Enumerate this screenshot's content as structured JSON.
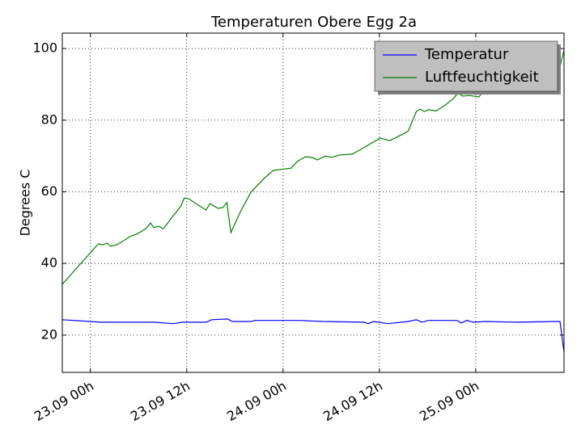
{
  "chart_data": {
    "type": "line",
    "title": "Temperaturen Obere Egg 2a",
    "y_label": "Degrees C",
    "xlim": [
      -3.5,
      59.0
    ],
    "xticks": [
      {
        "value": 0,
        "label": "23.09 00h"
      },
      {
        "value": 12,
        "label": "23.09 12h"
      },
      {
        "value": 24,
        "label": "24.09 00h"
      },
      {
        "value": 36,
        "label": "24.09 12h"
      },
      {
        "value": 48,
        "label": "25.09 00h"
      }
    ],
    "ylim": [
      9.6,
      104.3
    ],
    "yticks": [
      20,
      40,
      60,
      80,
      100
    ],
    "grid": true,
    "legend": "upper right",
    "series": [
      {
        "name": "Temperatur",
        "color": "#0000ff",
        "x": [
          -3.5,
          0,
          1.3,
          3.8,
          7.9,
          10.4,
          11.4,
          14.4,
          15.1,
          17.1,
          17.7,
          20.0,
          20.5,
          26.0,
          29.0,
          34.1,
          34.6,
          35.3,
          37.1,
          39.6,
          40.6,
          41.3,
          42.1,
          45.7,
          46.2,
          46.9,
          47.7,
          49.2,
          53.2,
          57.8,
          58.5,
          59.0
        ],
        "values": [
          24.3,
          23.8,
          23.6,
          23.6,
          23.6,
          23.2,
          23.6,
          23.6,
          24.3,
          24.5,
          23.8,
          23.8,
          24.1,
          24.1,
          23.8,
          23.6,
          23.2,
          23.8,
          23.2,
          23.8,
          24.3,
          23.6,
          24.1,
          24.1,
          23.4,
          24.1,
          23.6,
          23.8,
          23.6,
          23.8,
          23.8,
          15.3
        ]
      },
      {
        "name": "Luftfeuchtigkeit",
        "color": "#008000",
        "x": [
          -3.5,
          0,
          1.0,
          1.5,
          2.1,
          2.5,
          3.3,
          4.3,
          5.1,
          5.8,
          6.9,
          7.5,
          7.9,
          8.5,
          9.1,
          10.1,
          11.3,
          11.7,
          12.2,
          14.4,
          14.9,
          15.9,
          16.5,
          17.0,
          17.5,
          18.7,
          20.0,
          21.7,
          22.8,
          25.0,
          25.8,
          26.8,
          27.6,
          28.3,
          29.3,
          30.0,
          31.1,
          32.6,
          33.5,
          36.1,
          37.3,
          39.1,
          39.6,
          40.1,
          40.6,
          41.1,
          41.6,
          42.1,
          43.1,
          44.2,
          45.2,
          45.8,
          46.4,
          47.2,
          48.4,
          49.0,
          50.2,
          51.7,
          53.2,
          54.7,
          57.3,
          58.3,
          59.0
        ],
        "values": [
          34.2,
          43.0,
          45.5,
          45.2,
          45.7,
          44.8,
          45.2,
          46.6,
          47.7,
          48.2,
          49.7,
          51.3,
          50.0,
          50.4,
          49.7,
          52.7,
          56.1,
          58.3,
          58.1,
          54.9,
          56.7,
          55.4,
          55.6,
          57.0,
          48.6,
          54.5,
          59.9,
          63.9,
          66.0,
          66.6,
          68.5,
          69.8,
          69.6,
          68.9,
          70.0,
          69.6,
          70.3,
          70.5,
          71.6,
          75.0,
          74.3,
          76.3,
          77.0,
          79.7,
          82.4,
          83.1,
          82.4,
          82.9,
          82.6,
          84.2,
          86.0,
          87.6,
          86.7,
          86.9,
          86.5,
          88.3,
          88.5,
          89.6,
          89.4,
          90.3,
          91.4,
          93.2,
          99.5
        ]
      }
    ]
  }
}
